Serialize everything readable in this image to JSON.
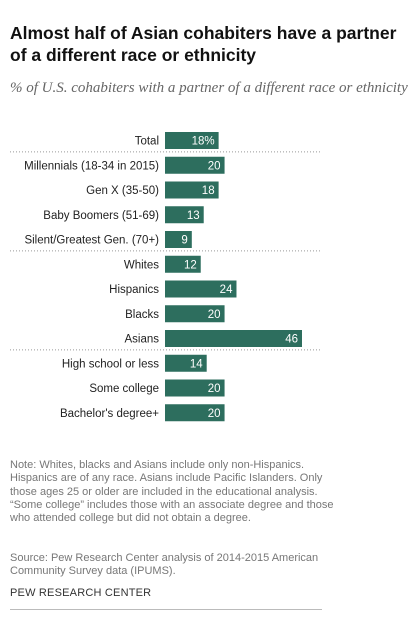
{
  "title": "Almost half of Asian cohabiters have a partner of a different race or ethnicity",
  "subtitle": "% of U.S. cohabiters with a partner of a different race or ethnicity",
  "note": "Note: Whites, blacks and Asians include only non-Hispanics. Hispanics are of any race. Asians include Pacific Islanders. Only those ages 25 or older are included in the educational analysis. “Some college” includes those with an associate degree and those who attended college but did not obtain a degree.",
  "source": "Source: Pew Research Center analysis of 2014-2015 American Community Survey data (IPUMS).",
  "credit": "PEW RESEARCH CENTER",
  "colors": {
    "bar": "#2d6e5e",
    "value_text": "#ffffff",
    "divider": "#999999"
  },
  "chart_data": {
    "type": "bar",
    "orientation": "horizontal",
    "categories": [
      "Total",
      "Millennials (18-34 in 2015)",
      "Gen X (35-50)",
      "Baby Boomers (51-69)",
      "Silent/Greatest Gen. (70+)",
      "Whites",
      "Hispanics",
      "Blacks",
      "Asians",
      "High school or less",
      "Some college",
      "Bachelor's degree+"
    ],
    "values": [
      18,
      20,
      18,
      13,
      9,
      12,
      24,
      20,
      46,
      14,
      20,
      20
    ],
    "value_labels": [
      "18%",
      "20",
      "18",
      "13",
      "9",
      "12",
      "24",
      "20",
      "46",
      "14",
      "20",
      "20"
    ],
    "groups": [
      {
        "start": 1,
        "end": 4
      },
      {
        "start": 5,
        "end": 8
      },
      {
        "start": 9,
        "end": 11
      }
    ],
    "xlim": [
      0,
      46
    ],
    "grid": false,
    "legend": "none"
  }
}
